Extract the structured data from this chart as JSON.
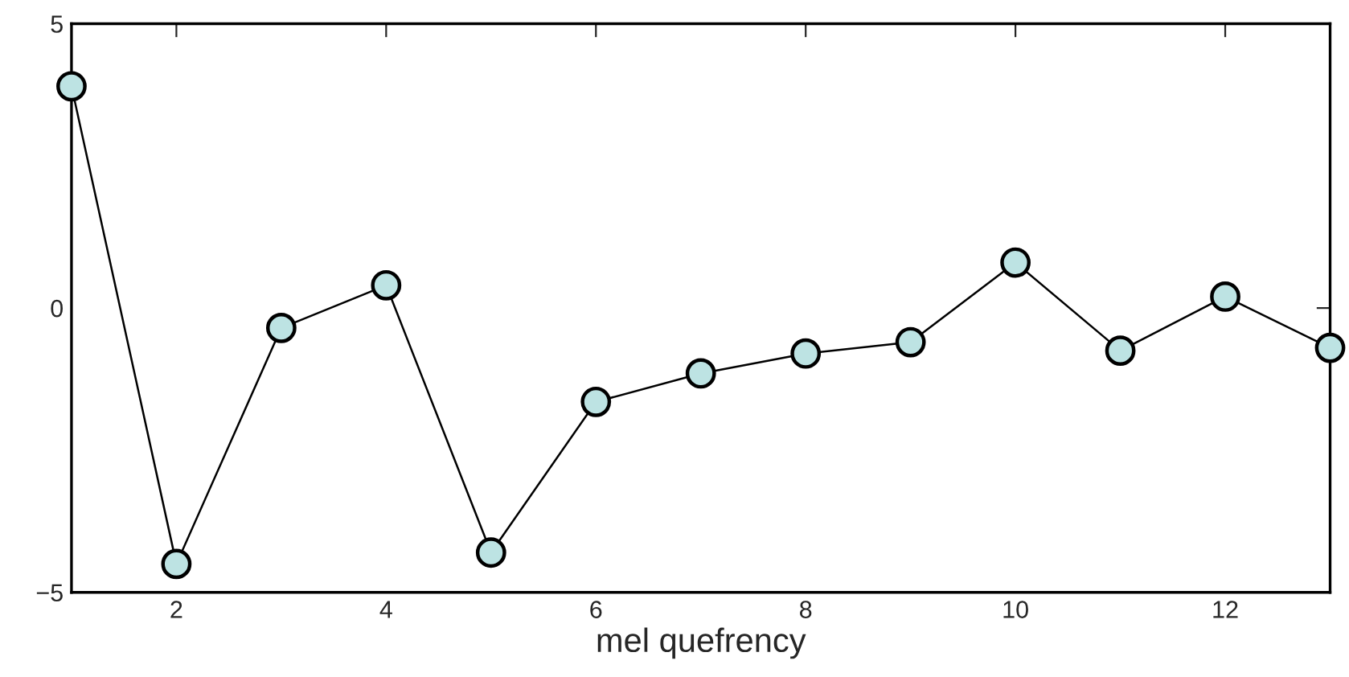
{
  "chart_data": {
    "type": "line",
    "xlabel": "mel quefrency",
    "x": [
      1,
      2,
      3,
      4,
      5,
      6,
      7,
      8,
      9,
      10,
      11,
      12,
      13
    ],
    "series": [
      {
        "color": "#bde3e3",
        "values": [
          3.9,
          -4.5,
          -0.35,
          0.4,
          -4.3,
          -1.65,
          -1.15,
          -0.8,
          -0.6,
          0.8,
          -0.75,
          0.2,
          -0.7
        ]
      }
    ],
    "marker": "circle",
    "line_style": "solid",
    "grid": false,
    "legend": false,
    "xlim": [
      1,
      13
    ],
    "xticks": [
      2,
      4,
      6,
      8,
      10,
      12
    ],
    "ylim": [
      -5,
      5
    ],
    "yticks": [
      {
        "value": -5,
        "label": "−5"
      },
      0,
      5
    ]
  }
}
